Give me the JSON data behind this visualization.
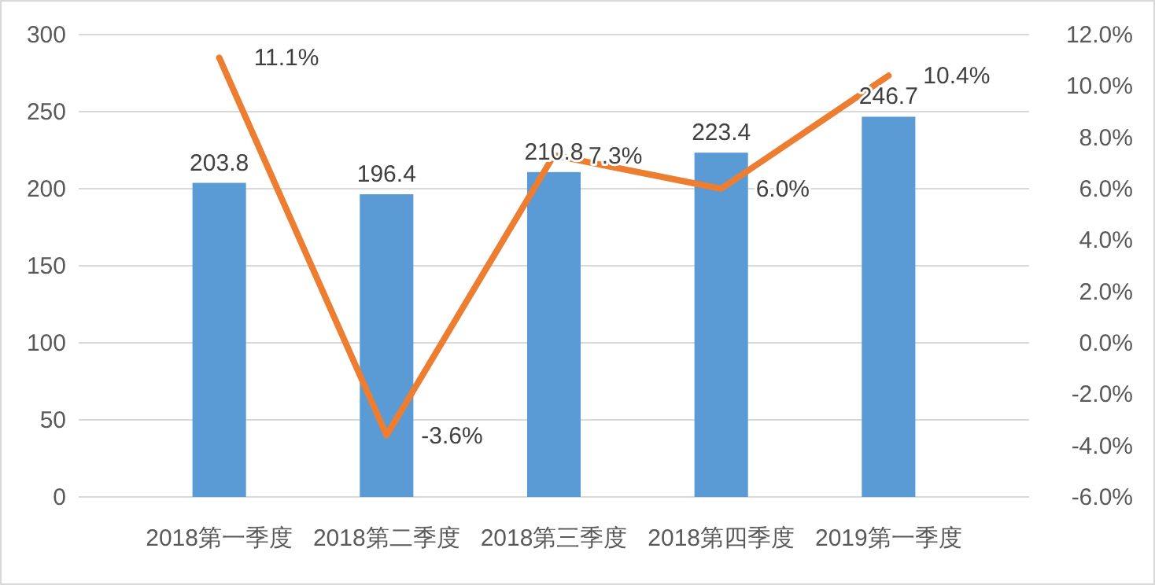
{
  "chart_data": {
    "type": "bar",
    "categories": [
      "2018第一季度",
      "2018第二季度",
      "2018第三季度",
      "2018第四季度",
      "2019第一季度"
    ],
    "series": [
      {
        "color": "#5b9bd5",
        "values": [
          203.8,
          196.4,
          210.8,
          223.4,
          246.7
        ],
        "value_labels": [
          "203.8",
          "196.4",
          "210.8",
          "223.4",
          "246.7"
        ]
      },
      {
        "type": "line",
        "axis": "y2",
        "color": "#ed7d31",
        "values": [
          11.1,
          -3.6,
          7.3,
          6.0,
          10.4
        ],
        "value_labels": [
          "11.1%",
          "-3.6%",
          "7.3%",
          "6.0%",
          "10.4%"
        ]
      }
    ],
    "ylim": [
      0,
      300
    ],
    "yticks": [
      0,
      50,
      100,
      150,
      200,
      250,
      300
    ],
    "y2lim": [
      -6,
      12
    ],
    "y2ticks": [
      {
        "value": -6,
        "label": "-6.0%"
      },
      {
        "value": -4,
        "label": "-4.0%"
      },
      {
        "value": -2,
        "label": "-2.0%"
      },
      {
        "value": 0,
        "label": "0.0%"
      },
      {
        "value": 2,
        "label": "2.0%"
      },
      {
        "value": 4,
        "label": "4.0%"
      },
      {
        "value": 6,
        "label": "6.0%"
      },
      {
        "value": 8,
        "label": "8.0%"
      },
      {
        "value": 10,
        "label": "10.0%"
      },
      {
        "value": 12,
        "label": "12.0%"
      }
    ],
    "grid": "y",
    "legend": false,
    "marker": "none",
    "line_style": "solid"
  }
}
